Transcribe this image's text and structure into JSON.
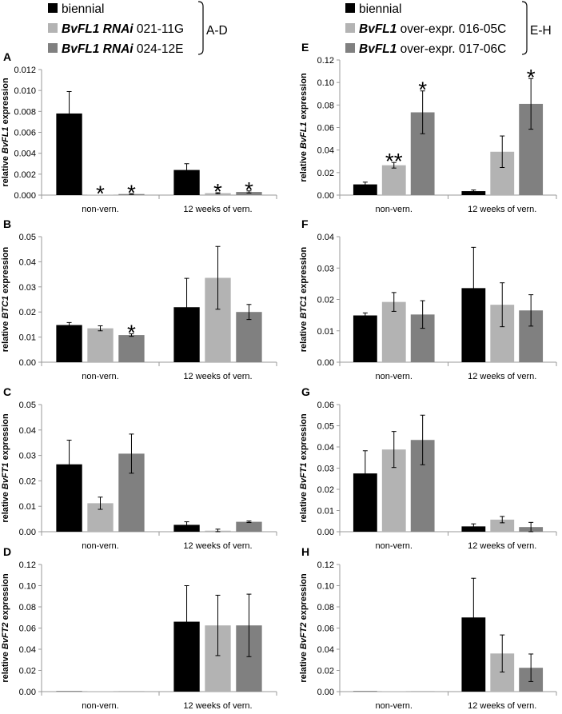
{
  "legends": [
    {
      "group_label": "A-D",
      "entries": [
        {
          "parts": [
            {
              "text": "biennial",
              "italic": false
            }
          ],
          "color": "#000000"
        },
        {
          "parts": [
            {
              "text": "BvFL1 RNAi",
              "italic": true
            },
            {
              "text": " 021-11G",
              "italic": false
            }
          ],
          "color": "#b3b3b3"
        },
        {
          "parts": [
            {
              "text": "BvFL1 RNAi",
              "italic": true
            },
            {
              "text": " 024-12E",
              "italic": false
            }
          ],
          "color": "#808080"
        }
      ]
    },
    {
      "group_label": "E-H",
      "entries": [
        {
          "parts": [
            {
              "text": "biennial",
              "italic": false
            }
          ],
          "color": "#000000"
        },
        {
          "parts": [
            {
              "text": "BvFL1",
              "italic": true
            },
            {
              "text": " over-expr. 016-05C",
              "italic": false
            }
          ],
          "color": "#b3b3b3"
        },
        {
          "parts": [
            {
              "text": "BvFL1",
              "italic": true
            },
            {
              "text": " over-expr. 017-06C",
              "italic": false
            }
          ],
          "color": "#808080"
        }
      ]
    }
  ],
  "colors": {
    "biennial": "#000000",
    "line1": "#b3b3b3",
    "line2": "#808080",
    "axis": "#9a9a9a"
  },
  "chart_data": [
    {
      "panel": "A",
      "type": "bar",
      "ylabel": {
        "prefix": "relative ",
        "gene": "BvFL1",
        "suffix": " expression"
      },
      "categories": [
        "non-vern.",
        "12 weeks of vern."
      ],
      "ylim": [
        0,
        0.012
      ],
      "ticks": [
        "0.000",
        "0.002",
        "0.004",
        "0.006",
        "0.008",
        "0.010",
        "0.012"
      ],
      "series": [
        {
          "name": "biennial",
          "values": [
            0.0078,
            0.0024
          ],
          "errors": [
            0.0021,
            0.0006
          ]
        },
        {
          "name": "BvFL1 RNAi 021-11G",
          "values": [
            3e-05,
            0.00018
          ],
          "errors": [
            0.0,
            5e-05
          ]
        },
        {
          "name": "BvFL1 RNAi 024-12E",
          "values": [
            0.0001,
            0.0003
          ],
          "errors": [
            3e-05,
            0.0001
          ]
        }
      ],
      "significance": [
        {
          "group": 0,
          "series": 1,
          "label": "*"
        },
        {
          "group": 0,
          "series": 2,
          "label": "*"
        },
        {
          "group": 1,
          "series": 1,
          "label": "*"
        },
        {
          "group": 1,
          "series": 2,
          "label": "*"
        }
      ]
    },
    {
      "panel": "B",
      "type": "bar",
      "ylabel": {
        "prefix": "relative ",
        "gene": "BTC1",
        "suffix": " expression"
      },
      "categories": [
        "non-vern.",
        "12 weeks of vern."
      ],
      "ylim": [
        0,
        0.05
      ],
      "ticks": [
        "0.00",
        "0.01",
        "0.02",
        "0.03",
        "0.04",
        "0.05"
      ],
      "series": [
        {
          "name": "biennial",
          "values": [
            0.0148,
            0.0219
          ],
          "errors": [
            0.001,
            0.0115
          ]
        },
        {
          "name": "BvFL1 RNAi 021-11G",
          "values": [
            0.0135,
            0.0336
          ],
          "errors": [
            0.001,
            0.0125
          ]
        },
        {
          "name": "BvFL1 RNAi 024-12E",
          "values": [
            0.0108,
            0.02
          ],
          "errors": [
            0.0005,
            0.003
          ]
        }
      ],
      "significance": [
        {
          "group": 0,
          "series": 2,
          "label": "*"
        }
      ]
    },
    {
      "panel": "C",
      "type": "bar",
      "ylabel": {
        "prefix": "relative ",
        "gene": "BvFT1",
        "suffix": " expression"
      },
      "categories": [
        "non-vern.",
        "12 weeks of vern."
      ],
      "ylim": [
        0,
        0.05
      ],
      "ticks": [
        "0.00",
        "0.01",
        "0.02",
        "0.03",
        "0.04",
        "0.05"
      ],
      "series": [
        {
          "name": "biennial",
          "values": [
            0.0265,
            0.0027
          ],
          "errors": [
            0.0095,
            0.0012
          ]
        },
        {
          "name": "BvFL1 RNAi 021-11G",
          "values": [
            0.0112,
            0.0004
          ],
          "errors": [
            0.0024,
            0.0006
          ]
        },
        {
          "name": "BvFL1 RNAi 024-12E",
          "values": [
            0.0307,
            0.0039
          ],
          "errors": [
            0.0077,
            0.0003
          ]
        }
      ],
      "significance": []
    },
    {
      "panel": "D",
      "type": "bar",
      "ylabel": {
        "prefix": "relative ",
        "gene": "BvFT2",
        "suffix": " expression"
      },
      "categories": [
        "non-vern.",
        "12 weeks of vern."
      ],
      "ylim": [
        0,
        0.12
      ],
      "ticks": [
        "0.00",
        "0.02",
        "0.04",
        "0.06",
        "0.08",
        "0.10",
        "0.12"
      ],
      "series": [
        {
          "name": "biennial",
          "values": [
            0,
            0.066
          ],
          "errors": [
            0,
            0.034
          ]
        },
        {
          "name": "BvFL1 RNAi 021-11G",
          "values": [
            0,
            0.0625
          ],
          "errors": [
            0,
            0.0285
          ]
        },
        {
          "name": "BvFL1 RNAi 024-12E",
          "values": [
            0,
            0.0625
          ],
          "errors": [
            0,
            0.0295
          ]
        }
      ],
      "significance": []
    },
    {
      "panel": "E",
      "type": "bar",
      "ylabel": {
        "prefix": "relative ",
        "gene": "BvFL1",
        "suffix": " expression"
      },
      "categories": [
        "non-vern.",
        "12 weeks of vern."
      ],
      "ylim": [
        0,
        0.12
      ],
      "ticks": [
        "0.00",
        "0.02",
        "0.04",
        "0.06",
        "0.08",
        "0.10",
        "0.12"
      ],
      "series": [
        {
          "name": "biennial",
          "values": [
            0.0095,
            0.0035
          ],
          "errors": [
            0.002,
            0.001
          ]
        },
        {
          "name": "BvFL1 over-expr. 016-05C",
          "values": [
            0.0265,
            0.0385
          ],
          "errors": [
            0.0025,
            0.014
          ]
        },
        {
          "name": "BvFL1 over-expr. 017-06C",
          "values": [
            0.0735,
            0.081
          ],
          "errors": [
            0.019,
            0.0225
          ]
        }
      ],
      "significance": [
        {
          "group": 0,
          "series": 1,
          "label": "**"
        },
        {
          "group": 0,
          "series": 2,
          "label": "*"
        },
        {
          "group": 1,
          "series": 2,
          "label": "*"
        }
      ]
    },
    {
      "panel": "F",
      "type": "bar",
      "ylabel": {
        "prefix": "relative ",
        "gene": "BTC1",
        "suffix": " expression"
      },
      "categories": [
        "non-vern.",
        "12 weeks of vern."
      ],
      "ylim": [
        0,
        0.04
      ],
      "ticks": [
        "0.00",
        "0.01",
        "0.02",
        "0.03",
        "0.04"
      ],
      "series": [
        {
          "name": "biennial",
          "values": [
            0.0149,
            0.0236
          ],
          "errors": [
            0.0008,
            0.013
          ]
        },
        {
          "name": "BvFL1 over-expr. 016-05C",
          "values": [
            0.0192,
            0.0183
          ],
          "errors": [
            0.003,
            0.007
          ]
        },
        {
          "name": "BvFL1 over-expr. 017-06C",
          "values": [
            0.0152,
            0.0165
          ],
          "errors": [
            0.0044,
            0.005
          ]
        }
      ],
      "significance": []
    },
    {
      "panel": "G",
      "type": "bar",
      "ylabel": {
        "prefix": "relative ",
        "gene": "BvFT1",
        "suffix": " expression"
      },
      "categories": [
        "non-vern.",
        "12 weeks of vern."
      ],
      "ylim": [
        0,
        0.06
      ],
      "ticks": [
        "0.00",
        "0.01",
        "0.02",
        "0.03",
        "0.04",
        "0.05",
        "0.06"
      ],
      "series": [
        {
          "name": "biennial",
          "values": [
            0.0275,
            0.0025
          ],
          "errors": [
            0.0107,
            0.0012
          ]
        },
        {
          "name": "BvFL1 over-expr. 016-05C",
          "values": [
            0.0388,
            0.0057
          ],
          "errors": [
            0.0085,
            0.0015
          ]
        },
        {
          "name": "BvFL1 over-expr. 017-06C",
          "values": [
            0.0433,
            0.0022
          ],
          "errors": [
            0.0117,
            0.0022
          ]
        }
      ],
      "significance": []
    },
    {
      "panel": "H",
      "type": "bar",
      "ylabel": {
        "prefix": "relative ",
        "gene": "BvFT2",
        "suffix": " expression"
      },
      "categories": [
        "non-vern.",
        "12 weeks of vern."
      ],
      "ylim": [
        0,
        0.12
      ],
      "ticks": [
        "0.00",
        "0.02",
        "0.04",
        "0.06",
        "0.08",
        "0.10",
        "0.12"
      ],
      "series": [
        {
          "name": "biennial",
          "values": [
            0,
            0.07
          ],
          "errors": [
            0,
            0.037
          ]
        },
        {
          "name": "BvFL1 over-expr. 016-05C",
          "values": [
            0,
            0.036
          ],
          "errors": [
            0,
            0.0175
          ]
        },
        {
          "name": "BvFL1 over-expr. 017-06C",
          "values": [
            0,
            0.0225
          ],
          "errors": [
            0,
            0.013
          ]
        }
      ],
      "significance": []
    }
  ]
}
